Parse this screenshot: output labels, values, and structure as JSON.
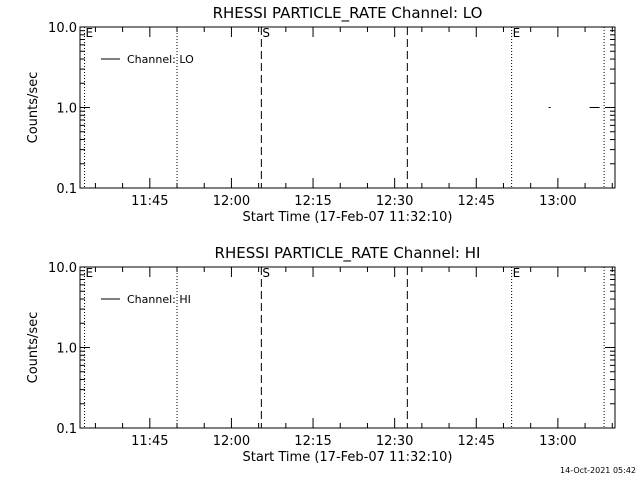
{
  "footer_timestamp": "14-Oct-2021 05:42",
  "chart_data": [
    {
      "type": "line",
      "title": "RHESSI PARTICLE_RATE Channel: LO",
      "xlabel": "Start Time (17-Feb-07 11:32:10)",
      "ylabel": "Counts/sec",
      "yscale": "log",
      "ylim": [
        0.1,
        10.0
      ],
      "y_tick_labels": [
        "10.0",
        "1.0",
        "0.1"
      ],
      "y_tick_values": [
        10.0,
        1.0,
        0.1
      ],
      "xlim": [
        "11:32:10",
        "13:10:30"
      ],
      "x_tick_labels": [
        "11:45",
        "12:00",
        "12:15",
        "12:30",
        "12:45",
        "13:00"
      ],
      "legend": {
        "position": "top-left",
        "entries": [
          "Channel: LO"
        ]
      },
      "series": [
        {
          "name": "Channel: LO",
          "x": [
            "12:58:30",
            "13:06:45"
          ],
          "y": [
            1.0,
            1.0
          ]
        }
      ],
      "event_lines": [
        {
          "time": "11:33:00",
          "style": "dotted",
          "label": "E"
        },
        {
          "time": "11:50:00",
          "style": "dotted",
          "label": ""
        },
        {
          "time": "12:05:30",
          "style": "dashed",
          "label": "S"
        },
        {
          "time": "12:32:20",
          "style": "dashed",
          "label": ""
        },
        {
          "time": "12:51:30",
          "style": "dotted",
          "label": "E"
        },
        {
          "time": "13:08:30",
          "style": "dotted",
          "label": ""
        }
      ]
    },
    {
      "type": "line",
      "title": "RHESSI PARTICLE_RATE Channel: HI",
      "xlabel": "Start Time (17-Feb-07 11:32:10)",
      "ylabel": "Counts/sec",
      "yscale": "log",
      "ylim": [
        0.1,
        10.0
      ],
      "y_tick_labels": [
        "10.0",
        "1.0",
        "0.1"
      ],
      "y_tick_values": [
        10.0,
        1.0,
        0.1
      ],
      "xlim": [
        "11:32:10",
        "13:10:30"
      ],
      "x_tick_labels": [
        "11:45",
        "12:00",
        "12:15",
        "12:30",
        "12:45",
        "13:00"
      ],
      "legend": {
        "position": "top-left",
        "entries": [
          "Channel: HI"
        ]
      },
      "series": [
        {
          "name": "Channel: HI",
          "x": [],
          "y": []
        }
      ],
      "event_lines": [
        {
          "time": "11:33:00",
          "style": "dotted",
          "label": "E"
        },
        {
          "time": "11:50:00",
          "style": "dotted",
          "label": ""
        },
        {
          "time": "12:05:30",
          "style": "dashed",
          "label": "S"
        },
        {
          "time": "12:32:20",
          "style": "dashed",
          "label": ""
        },
        {
          "time": "12:51:30",
          "style": "dotted",
          "label": "E"
        },
        {
          "time": "13:08:30",
          "style": "dotted",
          "label": ""
        }
      ]
    }
  ]
}
